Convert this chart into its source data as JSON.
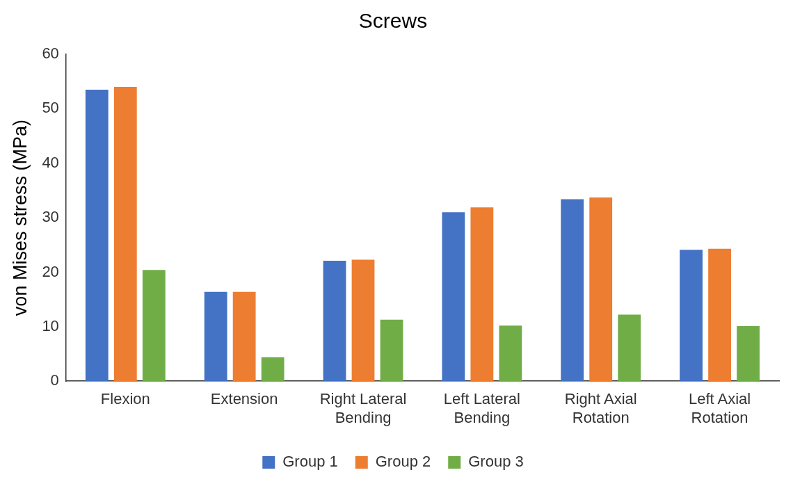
{
  "chart_data": {
    "type": "bar",
    "title": "Screws",
    "ylabel": "von Mises stress (MPa)",
    "categories": [
      "Flexion",
      "Extension",
      "Right Lateral Bending",
      "Left Lateral Bending",
      "Right Axial Rotation",
      "Left Axial Rotation"
    ],
    "series": [
      {
        "name": "Group 1",
        "color": "#4472c4",
        "values": [
          53.5,
          16.4,
          22.1,
          31.0,
          33.4,
          24.1
        ]
      },
      {
        "name": "Group 2",
        "color": "#ed7d31",
        "values": [
          54.0,
          16.4,
          22.3,
          31.9,
          33.7,
          24.3
        ]
      },
      {
        "name": "Group 3",
        "color": "#70ad47",
        "values": [
          20.4,
          4.4,
          11.3,
          10.2,
          12.2,
          10.1
        ]
      }
    ],
    "ylim": [
      0,
      60
    ],
    "yticks": [
      0,
      10,
      20,
      30,
      40,
      50,
      60
    ],
    "grid": false,
    "legend": "bottom"
  }
}
